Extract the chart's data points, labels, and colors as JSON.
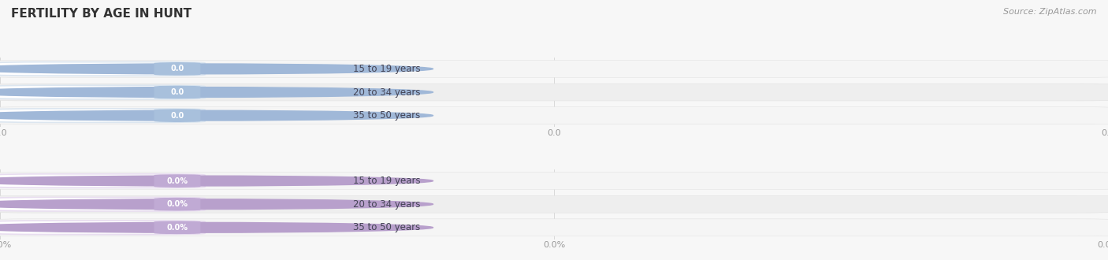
{
  "title": "FERTILITY BY AGE IN HUNT",
  "source": "Source: ZipAtlas.com",
  "sections": [
    {
      "categories": [
        "15 to 19 years",
        "20 to 34 years",
        "35 to 50 years"
      ],
      "values": [
        0.0,
        0.0,
        0.0
      ],
      "bar_bg": "#efefef",
      "pill_bg": "#dce6f0",
      "pill_left_color": "#a0b8d8",
      "value_badge_color": "#a8c0dc",
      "text_color": "#444455",
      "value_color": "white",
      "suffix": ""
    },
    {
      "categories": [
        "15 to 19 years",
        "20 to 34 years",
        "35 to 50 years"
      ],
      "values": [
        0.0,
        0.0,
        0.0
      ],
      "bar_bg": "#f0eff5",
      "pill_bg": "#e8ddf0",
      "pill_left_color": "#b8a0cc",
      "value_badge_color": "#c0aad4",
      "text_color": "#444455",
      "value_color": "white",
      "suffix": "%"
    }
  ],
  "fig_width": 14.06,
  "fig_height": 3.3,
  "bg_color": "#f7f7f7",
  "title_color": "#333333",
  "title_fontsize": 11,
  "source_fontsize": 8,
  "xtick_fontsize": 8,
  "row_alt_colors": [
    "#f5f5f5",
    "#eeeeee"
  ]
}
